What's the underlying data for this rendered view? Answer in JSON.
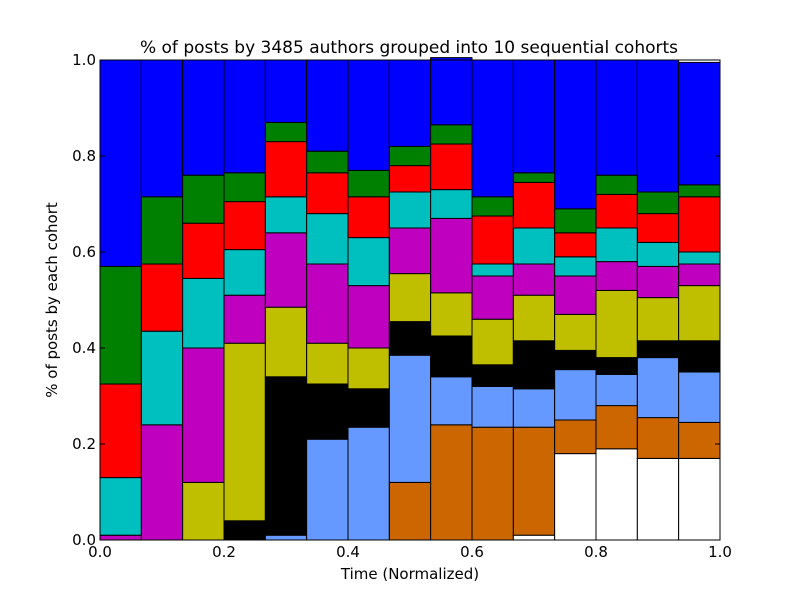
{
  "chart_data": {
    "type": "bar",
    "stacked": true,
    "title": "% of posts by 3485 authors grouped into 10 sequential cohorts",
    "xlabel": "Time (Normalized)",
    "ylabel": "% of posts by each cohort",
    "xlim": [
      0.0,
      1.0
    ],
    "ylim": [
      0.0,
      1.0
    ],
    "xticks": [
      "0.0",
      "0.2",
      "0.4",
      "0.6",
      "0.8",
      "1.0"
    ],
    "yticks": [
      "0.0",
      "0.2",
      "0.4",
      "0.6",
      "0.8",
      "1.0"
    ],
    "grid": false,
    "legend": "none",
    "bin_edges": [
      0.0,
      0.0667,
      0.1333,
      0.2,
      0.2667,
      0.3333,
      0.4,
      0.4667,
      0.5333,
      0.6,
      0.6667,
      0.7333,
      0.8,
      0.8667,
      0.9333,
      1.0
    ],
    "series": [
      {
        "cohort": 10,
        "color": "#ffffff",
        "values": [
          0,
          0,
          0,
          0,
          0,
          0,
          0,
          0,
          0,
          0,
          0.01,
          0.18,
          0.19,
          0.17,
          0.17
        ]
      },
      {
        "cohort": 9,
        "color": "#cc6600",
        "values": [
          0,
          0,
          0,
          0,
          0,
          0,
          0,
          0.12,
          0.24,
          0.235,
          0.225,
          0.07,
          0.09,
          0.085,
          0.075
        ]
      },
      {
        "cohort": 8,
        "color": "#6699ff",
        "values": [
          0,
          0,
          0,
          0,
          0.01,
          0.21,
          0.235,
          0.265,
          0.1,
          0.085,
          0.08,
          0.105,
          0.065,
          0.125,
          0.105
        ]
      },
      {
        "cohort": 7,
        "color": "#000000",
        "values": [
          0,
          0,
          0,
          0.04,
          0.33,
          0.115,
          0.08,
          0.07,
          0.085,
          0.045,
          0.1,
          0.04,
          0.035,
          0.035,
          0.065
        ]
      },
      {
        "cohort": 6,
        "color": "#bfbf00",
        "values": [
          0,
          0,
          0.12,
          0.37,
          0.145,
          0.085,
          0.085,
          0.1,
          0.09,
          0.095,
          0.095,
          0.075,
          0.14,
          0.09,
          0.115
        ]
      },
      {
        "cohort": 5,
        "color": "#bf00bf",
        "values": [
          0.01,
          0.24,
          0.28,
          0.1,
          0.155,
          0.165,
          0.13,
          0.095,
          0.155,
          0.09,
          0.065,
          0.08,
          0.06,
          0.065,
          0.045
        ]
      },
      {
        "cohort": 4,
        "color": "#00bfbf",
        "values": [
          0.12,
          0.195,
          0.145,
          0.095,
          0.075,
          0.105,
          0.1,
          0.075,
          0.06,
          0.025,
          0.075,
          0.04,
          0.07,
          0.05,
          0.025
        ]
      },
      {
        "cohort": 3,
        "color": "#ff0000",
        "values": [
          0.195,
          0.14,
          0.115,
          0.1,
          0.115,
          0.085,
          0.085,
          0.055,
          0.095,
          0.1,
          0.095,
          0.05,
          0.07,
          0.06,
          0.115
        ]
      },
      {
        "cohort": 2,
        "color": "#008000",
        "values": [
          0.245,
          0.14,
          0.1,
          0.06,
          0.04,
          0.045,
          0.055,
          0.04,
          0.04,
          0.04,
          0.02,
          0.05,
          0.04,
          0.045,
          0.025
        ]
      },
      {
        "cohort": 1,
        "color": "#0000ff",
        "values": [
          0.43,
          0.285,
          0.24,
          0.235,
          0.13,
          0.19,
          0.23,
          0.18,
          0.14,
          0.285,
          0.235,
          0.31,
          0.24,
          0.275,
          0.255
        ]
      }
    ]
  }
}
